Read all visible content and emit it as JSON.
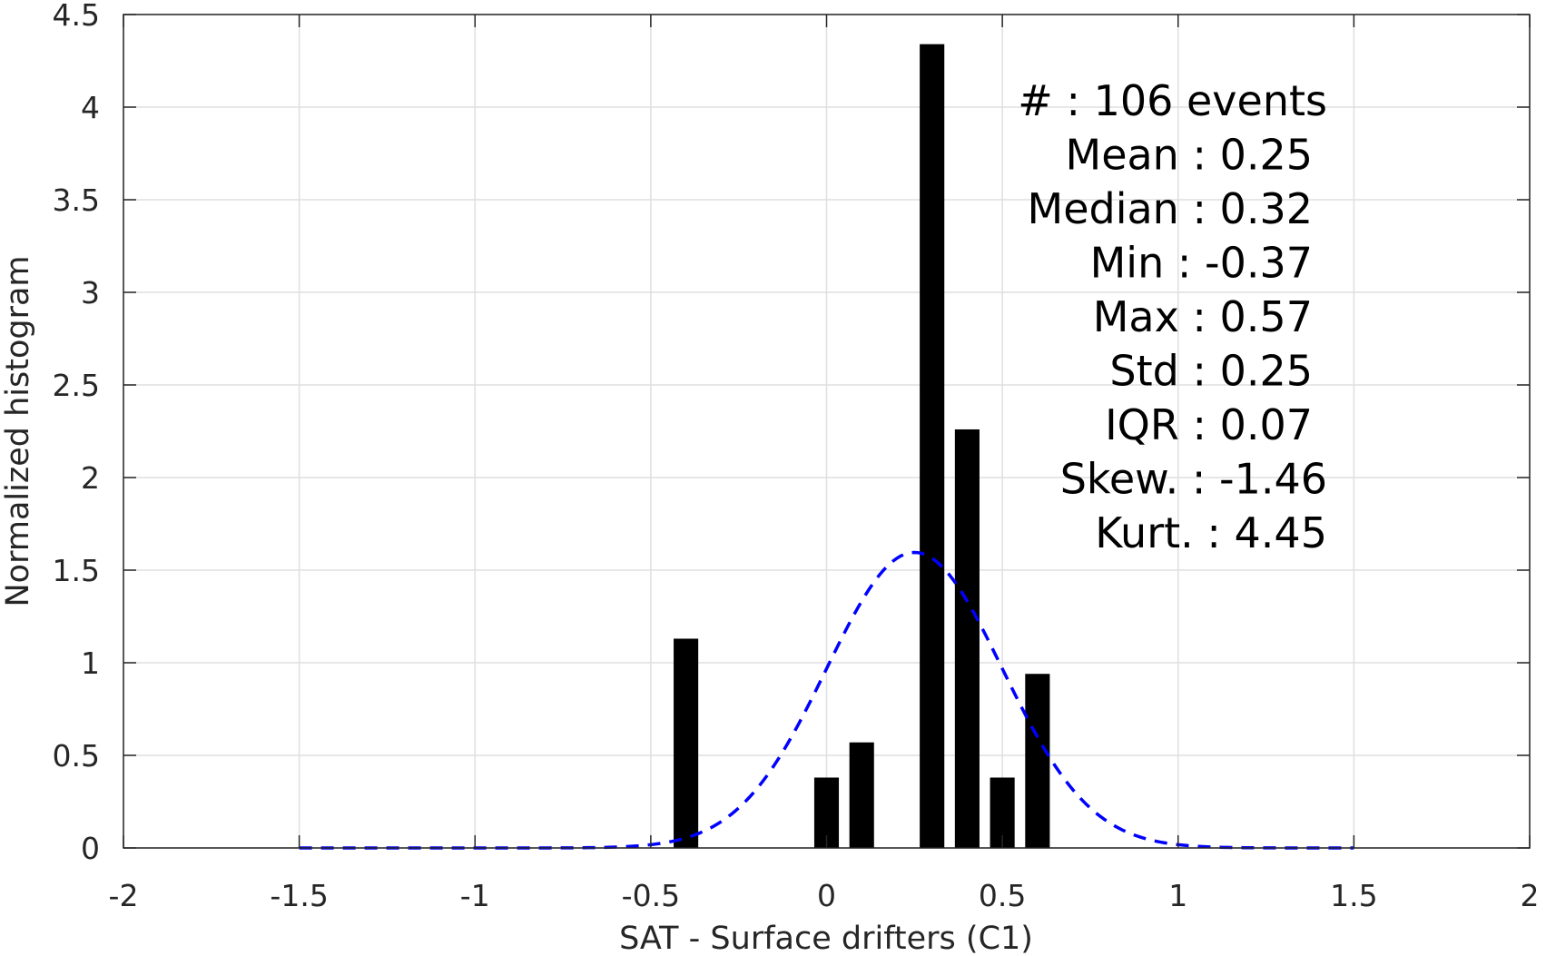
{
  "chart_data": {
    "type": "bar",
    "xlabel": "SAT - Surface drifters (C1)",
    "ylabel": "Normalized histogram",
    "xlim": [
      -2,
      2
    ],
    "ylim": [
      0,
      4.5
    ],
    "x_ticks": [
      "-2",
      "-1.5",
      "-1",
      "-0.5",
      "0",
      "0.5",
      "1",
      "1.5",
      "2"
    ],
    "y_ticks": [
      "0",
      "0.5",
      "1",
      "1.5",
      "2",
      "2.5",
      "3",
      "3.5",
      "4",
      "4.5"
    ],
    "grid": true,
    "bar_width": 0.07,
    "bars": [
      {
        "x": -0.4,
        "value": 1.13
      },
      {
        "x": 0.0,
        "value": 0.38
      },
      {
        "x": 0.1,
        "value": 0.57
      },
      {
        "x": 0.3,
        "value": 4.34
      },
      {
        "x": 0.4,
        "value": 2.26
      },
      {
        "x": 0.5,
        "value": 0.38
      },
      {
        "x": 0.6,
        "value": 0.94
      }
    ],
    "fit_curve": {
      "type": "normal",
      "mean": 0.25,
      "std": 0.25,
      "range": [
        -1.5,
        1.5
      ],
      "style": "dashed",
      "color": "#0000ff"
    },
    "bar_color": "#000000",
    "stats": [
      {
        "label": "#  ",
        "value": ": 106 events"
      },
      {
        "label": "Mean ",
        "value": ": 0.25"
      },
      {
        "label": "Median ",
        "value": ": 0.32"
      },
      {
        "label": "Min ",
        "value": ": -0.37"
      },
      {
        "label": "Max ",
        "value": ": 0.57"
      },
      {
        "label": "Std ",
        "value": ": 0.25"
      },
      {
        "label": "IQR ",
        "value": ": 0.07"
      },
      {
        "label": "Skew. ",
        "value": ": -1.46"
      },
      {
        "label": "Kurt. ",
        "value": ": 4.45"
      }
    ]
  }
}
